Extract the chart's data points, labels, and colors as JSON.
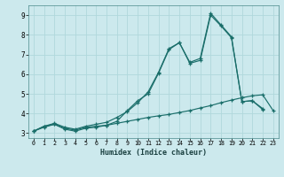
{
  "xlabel": "Humidex (Indice chaleur)",
  "bg_color": "#cce9ed",
  "grid_color": "#b0d8dc",
  "line_color": "#1a6e6a",
  "xlim": [
    -0.5,
    23.5
  ],
  "ylim": [
    2.75,
    9.5
  ],
  "x_ticks": [
    0,
    1,
    2,
    3,
    4,
    5,
    6,
    7,
    8,
    9,
    10,
    11,
    12,
    13,
    14,
    15,
    16,
    17,
    18,
    19,
    20,
    21,
    22,
    23
  ],
  "y_ticks": [
    3,
    4,
    5,
    6,
    7,
    8,
    9
  ],
  "series": [
    {
      "x": [
        0,
        1,
        2,
        3,
        4,
        5,
        6,
        7,
        8,
        9,
        10,
        11,
        12,
        13,
        14,
        15,
        16,
        17,
        18,
        19,
        20,
        21,
        22,
        23
      ],
      "y": [
        3.1,
        3.3,
        3.45,
        3.25,
        3.15,
        3.3,
        3.35,
        3.4,
        3.5,
        3.6,
        3.7,
        3.8,
        3.88,
        3.95,
        4.05,
        4.15,
        4.28,
        4.4,
        4.55,
        4.68,
        4.8,
        4.9,
        4.95,
        4.15
      ]
    },
    {
      "x": [
        0,
        1,
        2,
        3,
        4,
        5,
        6,
        7,
        8,
        9,
        10,
        11,
        12,
        13,
        14,
        15,
        16,
        17,
        18,
        19,
        20,
        21,
        22
      ],
      "y": [
        3.1,
        3.35,
        3.45,
        3.2,
        3.1,
        3.25,
        3.3,
        3.4,
        3.6,
        4.15,
        4.65,
        5.0,
        6.05,
        7.25,
        7.6,
        6.55,
        6.7,
        9.0,
        8.45,
        7.85,
        4.6,
        4.65,
        4.2
      ]
    },
    {
      "x": [
        0,
        1,
        2,
        3,
        4,
        5,
        6,
        7,
        8,
        9,
        10,
        11,
        12,
        13,
        14,
        15,
        16,
        17,
        18,
        19,
        20,
        21,
        22
      ],
      "y": [
        3.1,
        3.35,
        3.5,
        3.3,
        3.2,
        3.35,
        3.45,
        3.55,
        3.8,
        4.1,
        4.55,
        5.1,
        6.1,
        7.3,
        7.6,
        6.6,
        6.8,
        9.1,
        8.5,
        7.9,
        4.6,
        4.65,
        4.25
      ]
    }
  ]
}
